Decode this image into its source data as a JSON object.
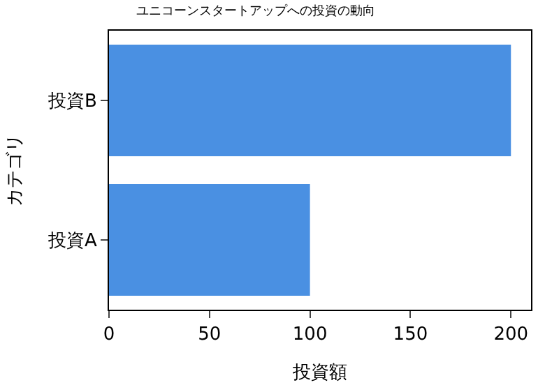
{
  "chart_data": {
    "type": "bar",
    "orientation": "horizontal",
    "title": "ユニコーンスタートアップへの投資の動向",
    "xlabel": "投資額",
    "ylabel": "カテゴリ",
    "categories": [
      "投資B",
      "投資A"
    ],
    "values": [
      200,
      100
    ],
    "color": "#4a90e2",
    "xlim": [
      0,
      210
    ],
    "xticks": [
      0,
      50,
      100,
      150,
      200
    ]
  }
}
